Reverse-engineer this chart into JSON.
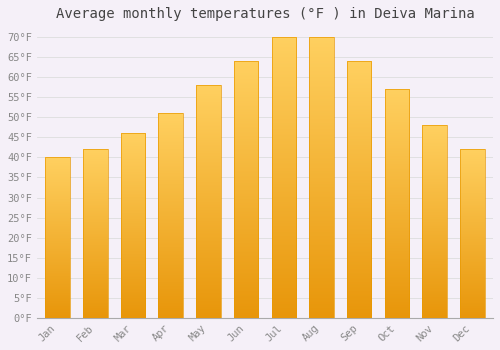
{
  "title": "Average monthly temperatures (°F ) in Deiva Marina",
  "months": [
    "Jan",
    "Feb",
    "Mar",
    "Apr",
    "May",
    "Jun",
    "Jul",
    "Aug",
    "Sep",
    "Oct",
    "Nov",
    "Dec"
  ],
  "values": [
    40,
    42,
    46,
    51,
    58,
    64,
    70,
    70,
    64,
    57,
    48,
    42
  ],
  "bar_color_top": "#FFD060",
  "bar_color_bottom": "#F5A800",
  "bar_edge_color": "#E89800",
  "background_color": "#F5F0F8",
  "plot_bg_color": "#F5F0F8",
  "grid_color": "#DDDDDD",
  "ytick_min": 0,
  "ytick_max": 70,
  "ytick_step": 5,
  "title_fontsize": 10,
  "tick_fontsize": 7.5,
  "tick_font_family": "monospace",
  "title_color": "#444444",
  "tick_color": "#888888"
}
